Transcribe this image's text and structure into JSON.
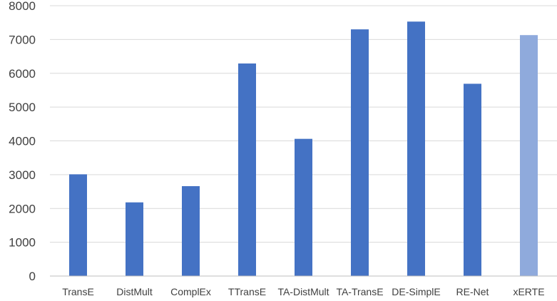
{
  "chart_data": {
    "type": "bar",
    "title": "",
    "xlabel": "",
    "ylabel": "",
    "ylim": [
      0,
      8000
    ],
    "yticks": [
      0,
      1000,
      2000,
      3000,
      4000,
      5000,
      6000,
      7000,
      8000
    ],
    "grid": true,
    "legend": "none",
    "categories": [
      "TransE",
      "DistMult",
      "ComplEx",
      "TTransE",
      "TA-DistMult",
      "TA-TransE",
      "DE-SimplE",
      "RE-Net",
      "xERTE"
    ],
    "values": [
      3010,
      2180,
      2660,
      6290,
      4060,
      7300,
      7530,
      5690,
      7130
    ],
    "colors": [
      "#4472c4",
      "#4472c4",
      "#4472c4",
      "#4472c4",
      "#4472c4",
      "#4472c4",
      "#4472c4",
      "#4472c4",
      "#8faadc"
    ]
  }
}
